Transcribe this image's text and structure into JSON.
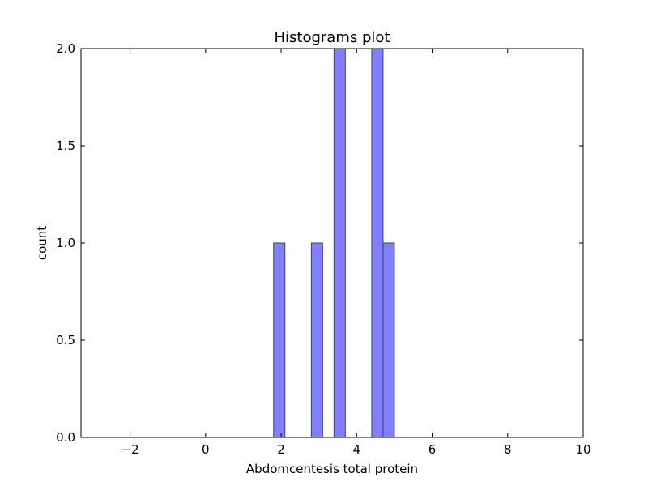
{
  "chart_data": {
    "type": "bar",
    "title": "Histograms plot",
    "xlabel": "Abdomcentesis total protein",
    "ylabel": "count",
    "xlim": [
      -3.3,
      10
    ],
    "ylim": [
      0,
      2
    ],
    "xticks": [
      -2,
      0,
      2,
      4,
      6,
      8,
      10
    ],
    "xtick_labels": [
      "−2",
      "0",
      "2",
      "4",
      "6",
      "8",
      "10"
    ],
    "yticks": [
      0,
      0.5,
      1,
      1.5,
      2
    ],
    "ytick_labels": [
      "0.0",
      "0.5",
      "1.0",
      "1.5",
      "2.0"
    ],
    "grid": false,
    "bar_color": "#8080ff",
    "bar_edge_color": "#3a3a8c",
    "bins": [
      {
        "x0": 1.8,
        "x1": 2.1,
        "count": 1
      },
      {
        "x0": 2.8,
        "x1": 3.1,
        "count": 1
      },
      {
        "x0": 3.4,
        "x1": 3.7,
        "count": 2
      },
      {
        "x0": 4.4,
        "x1": 4.7,
        "count": 2
      },
      {
        "x0": 4.7,
        "x1": 5.0,
        "count": 1
      }
    ]
  }
}
